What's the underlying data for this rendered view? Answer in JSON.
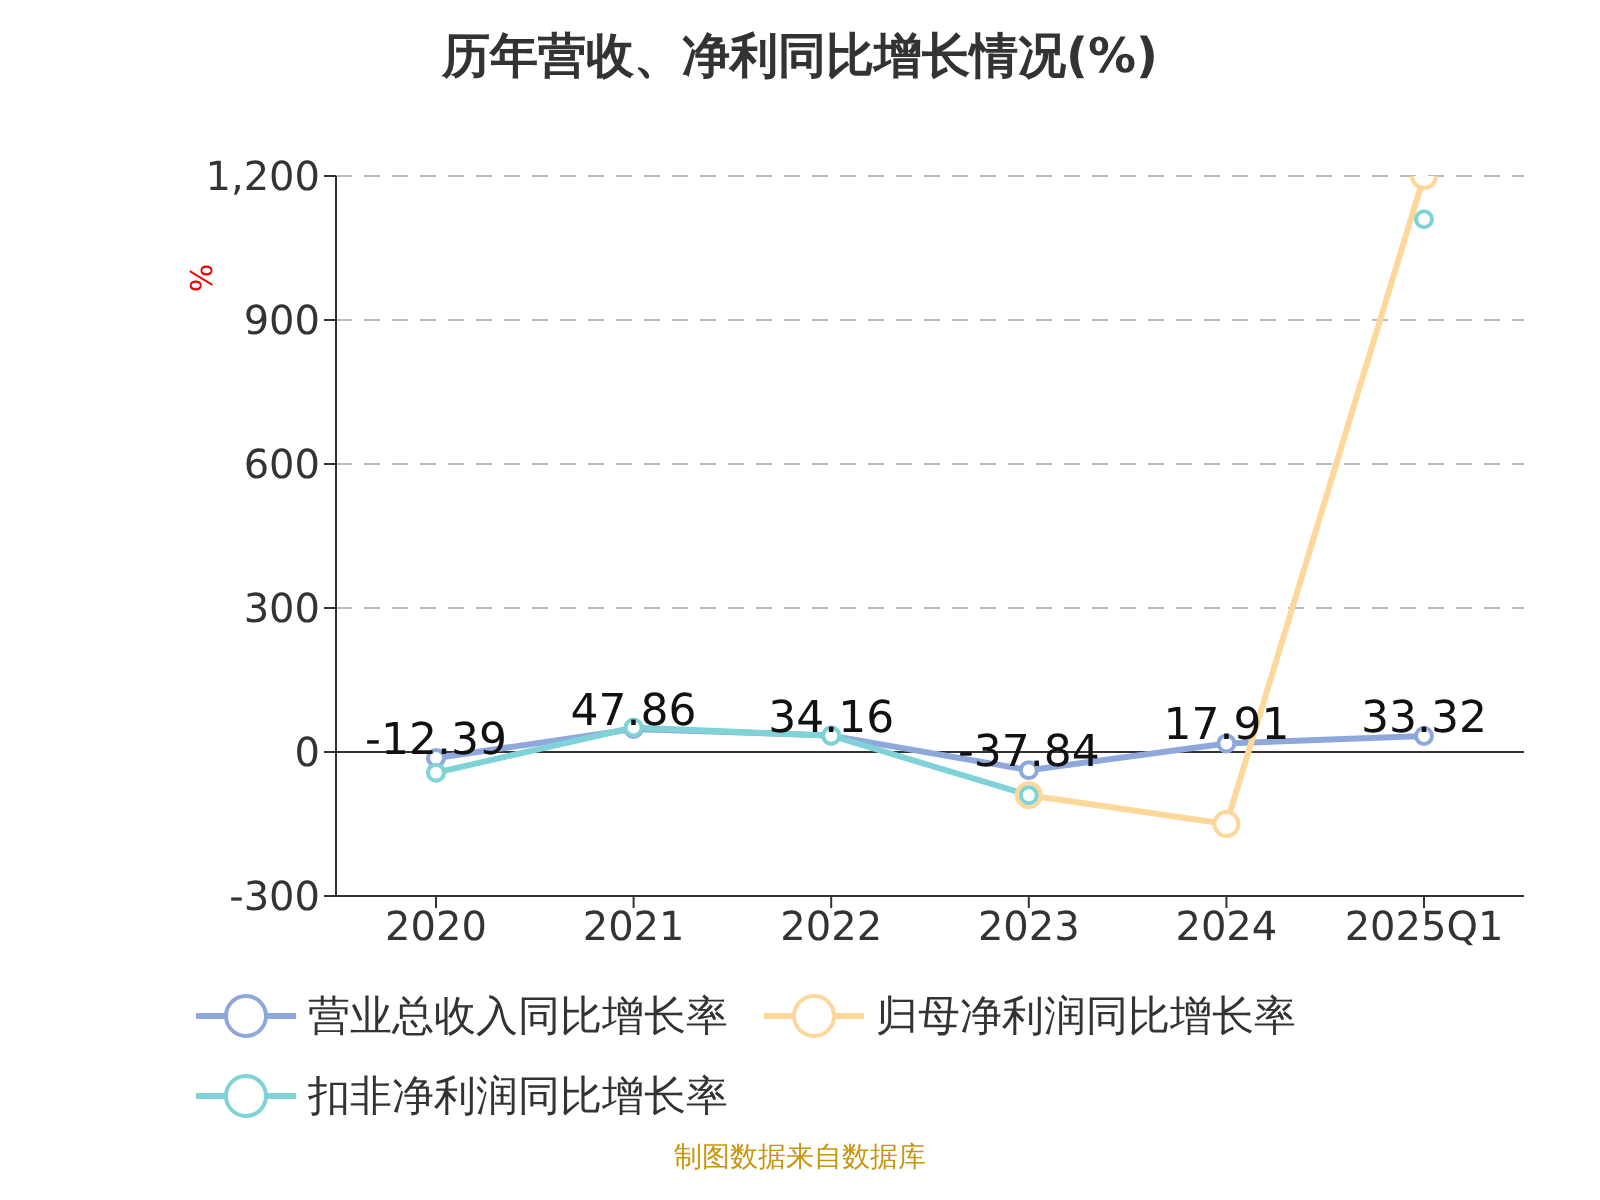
{
  "chart_data": {
    "type": "line",
    "title": "历年营收、净利同比增长情况(%)",
    "ylabel": "%",
    "categories": [
      "2020",
      "2021",
      "2022",
      "2023",
      "2024",
      "2025Q1"
    ],
    "series": [
      {
        "name": "营业总收入同比增长率",
        "color": "#8fa8dc",
        "values": [
          -12.39,
          47.86,
          34.16,
          -37.84,
          17.91,
          33.32
        ],
        "value_labels": [
          "-12.39",
          "47.86",
          "34.16",
          "-37.84",
          "17.91",
          "33.32"
        ]
      },
      {
        "name": "归母净利润同比增长率",
        "color": "#fdd89a",
        "values": [
          null,
          null,
          null,
          -90,
          -150,
          1200
        ]
      },
      {
        "name": "扣非净利润同比增长率",
        "color": "#7fd3d6",
        "values": [
          -43,
          51,
          34,
          -90,
          null,
          1110
        ]
      }
    ],
    "ylim": [
      -300,
      1200
    ],
    "yticks": [
      -300,
      0,
      {
        "value": 300,
        "label": "300"
      },
      {
        "value": 600,
        "label": "600"
      },
      {
        "value": 900,
        "label": "900"
      },
      {
        "value": 1200,
        "label": "1,200"
      }
    ],
    "grid": "y",
    "legend": "bottom",
    "marker": "circle",
    "line_style": "solid",
    "annotations": [
      "制图数据来自数据库"
    ]
  }
}
